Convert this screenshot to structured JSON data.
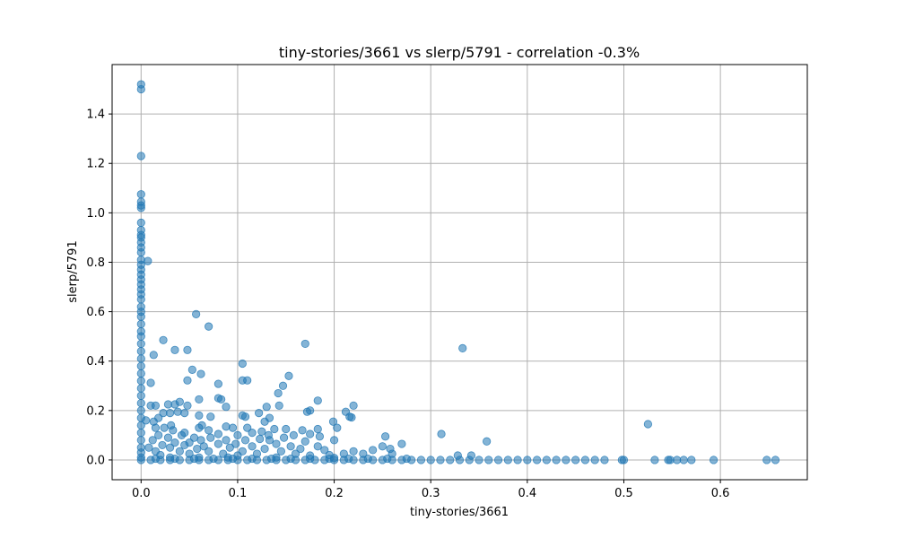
{
  "chart_data": {
    "type": "scatter",
    "title": "tiny-stories/3661 vs slerp/5791 - correlation -0.3%",
    "xlabel": "tiny-stories/3661",
    "ylabel": "slerp/5791",
    "xlim": [
      -0.03,
      0.69
    ],
    "ylim": [
      -0.08,
      1.6
    ],
    "xticks": [
      0.0,
      0.1,
      0.2,
      0.3,
      0.4,
      0.5,
      0.6
    ],
    "xtick_labels": [
      "0.0",
      "0.1",
      "0.2",
      "0.3",
      "0.4",
      "0.5",
      "0.6"
    ],
    "yticks": [
      0.0,
      0.2,
      0.4,
      0.6,
      0.8,
      1.0,
      1.2,
      1.4
    ],
    "ytick_labels": [
      "0.0",
      "0.2",
      "0.4",
      "0.6",
      "0.8",
      "1.0",
      "1.2",
      "1.4"
    ],
    "grid": true,
    "marker_color": "#1f77b4",
    "series": [
      {
        "points": [
          [
            0.0,
            1.52
          ],
          [
            0.0,
            1.5
          ],
          [
            0.0,
            1.23
          ],
          [
            0.0,
            1.075
          ],
          [
            0.0,
            1.045
          ],
          [
            0.0,
            1.03
          ],
          [
            0.0,
            1.02
          ],
          [
            0.0,
            0.96
          ],
          [
            0.0,
            0.93
          ],
          [
            0.0,
            0.91
          ],
          [
            0.0,
            0.9
          ],
          [
            0.0,
            0.88
          ],
          [
            0.0,
            0.86
          ],
          [
            0.0,
            0.84
          ],
          [
            0.0,
            0.81
          ],
          [
            0.0,
            0.79
          ],
          [
            0.0,
            0.77
          ],
          [
            0.0,
            0.75
          ],
          [
            0.0,
            0.73
          ],
          [
            0.0,
            0.71
          ],
          [
            0.0,
            0.69
          ],
          [
            0.0,
            0.67
          ],
          [
            0.0,
            0.65
          ],
          [
            0.0,
            0.62
          ],
          [
            0.0,
            0.6
          ],
          [
            0.0,
            0.58
          ],
          [
            0.0,
            0.55
          ],
          [
            0.0,
            0.52
          ],
          [
            0.0,
            0.5
          ],
          [
            0.0,
            0.47
          ],
          [
            0.0,
            0.44
          ],
          [
            0.0,
            0.41
          ],
          [
            0.0,
            0.38
          ],
          [
            0.0,
            0.35
          ],
          [
            0.0,
            0.32
          ],
          [
            0.0,
            0.29
          ],
          [
            0.0,
            0.26
          ],
          [
            0.0,
            0.23
          ],
          [
            0.0,
            0.2
          ],
          [
            0.0,
            0.17
          ],
          [
            0.0,
            0.14
          ],
          [
            0.0,
            0.11
          ],
          [
            0.0,
            0.08
          ],
          [
            0.0,
            0.05
          ],
          [
            0.0,
            0.03
          ],
          [
            0.0,
            0.01
          ],
          [
            0.0,
            0.0
          ],
          [
            0.007,
            0.805
          ],
          [
            0.057,
            0.59
          ],
          [
            0.07,
            0.54
          ],
          [
            0.023,
            0.485
          ],
          [
            0.17,
            0.47
          ],
          [
            0.333,
            0.452
          ],
          [
            0.035,
            0.445
          ],
          [
            0.048,
            0.445
          ],
          [
            0.013,
            0.425
          ],
          [
            0.105,
            0.39
          ],
          [
            0.053,
            0.365
          ],
          [
            0.062,
            0.348
          ],
          [
            0.153,
            0.34
          ],
          [
            0.105,
            0.322
          ],
          [
            0.11,
            0.322
          ],
          [
            0.048,
            0.322
          ],
          [
            0.01,
            0.312
          ],
          [
            0.08,
            0.308
          ],
          [
            0.147,
            0.3
          ],
          [
            0.142,
            0.27
          ],
          [
            0.06,
            0.245
          ],
          [
            0.08,
            0.25
          ],
          [
            0.083,
            0.245
          ],
          [
            0.183,
            0.24
          ],
          [
            0.04,
            0.235
          ],
          [
            0.028,
            0.225
          ],
          [
            0.035,
            0.225
          ],
          [
            0.048,
            0.22
          ],
          [
            0.143,
            0.22
          ],
          [
            0.22,
            0.22
          ],
          [
            0.01,
            0.22
          ],
          [
            0.015,
            0.22
          ],
          [
            0.13,
            0.215
          ],
          [
            0.088,
            0.215
          ],
          [
            0.175,
            0.2
          ],
          [
            0.172,
            0.195
          ],
          [
            0.212,
            0.195
          ],
          [
            0.023,
            0.19
          ],
          [
            0.03,
            0.19
          ],
          [
            0.038,
            0.195
          ],
          [
            0.045,
            0.19
          ],
          [
            0.122,
            0.19
          ],
          [
            0.06,
            0.18
          ],
          [
            0.072,
            0.175
          ],
          [
            0.105,
            0.18
          ],
          [
            0.108,
            0.175
          ],
          [
            0.216,
            0.175
          ],
          [
            0.218,
            0.172
          ],
          [
            0.018,
            0.17
          ],
          [
            0.133,
            0.17
          ],
          [
            0.005,
            0.16
          ],
          [
            0.013,
            0.155
          ],
          [
            0.199,
            0.155
          ],
          [
            0.128,
            0.155
          ],
          [
            0.031,
            0.14
          ],
          [
            0.063,
            0.14
          ],
          [
            0.088,
            0.135
          ],
          [
            0.015,
            0.13
          ],
          [
            0.024,
            0.13
          ],
          [
            0.06,
            0.13
          ],
          [
            0.095,
            0.13
          ],
          [
            0.11,
            0.13
          ],
          [
            0.138,
            0.125
          ],
          [
            0.15,
            0.125
          ],
          [
            0.167,
            0.12
          ],
          [
            0.183,
            0.125
          ],
          [
            0.203,
            0.13
          ],
          [
            0.033,
            0.12
          ],
          [
            0.07,
            0.12
          ],
          [
            0.115,
            0.11
          ],
          [
            0.125,
            0.115
          ],
          [
            0.045,
            0.11
          ],
          [
            0.08,
            0.105
          ],
          [
            0.175,
            0.105
          ],
          [
            0.311,
            0.105
          ],
          [
            0.018,
            0.1
          ],
          [
            0.042,
            0.1
          ],
          [
            0.1,
            0.1
          ],
          [
            0.132,
            0.1
          ],
          [
            0.158,
            0.1
          ],
          [
            0.253,
            0.095
          ],
          [
            0.185,
            0.095
          ],
          [
            0.028,
            0.09
          ],
          [
            0.055,
            0.09
          ],
          [
            0.072,
            0.09
          ],
          [
            0.148,
            0.09
          ],
          [
            0.123,
            0.085
          ],
          [
            0.012,
            0.08
          ],
          [
            0.062,
            0.08
          ],
          [
            0.088,
            0.08
          ],
          [
            0.108,
            0.08
          ],
          [
            0.133,
            0.08
          ],
          [
            0.17,
            0.075
          ],
          [
            0.2,
            0.08
          ],
          [
            0.358,
            0.075
          ],
          [
            0.035,
            0.07
          ],
          [
            0.05,
            0.07
          ],
          [
            0.08,
            0.065
          ],
          [
            0.098,
            0.065
          ],
          [
            0.14,
            0.065
          ],
          [
            0.27,
            0.065
          ],
          [
            0.022,
            0.06
          ],
          [
            0.045,
            0.06
          ],
          [
            0.065,
            0.055
          ],
          [
            0.115,
            0.055
          ],
          [
            0.155,
            0.055
          ],
          [
            0.183,
            0.055
          ],
          [
            0.25,
            0.055
          ],
          [
            0.008,
            0.05
          ],
          [
            0.03,
            0.05
          ],
          [
            0.058,
            0.045
          ],
          [
            0.092,
            0.05
          ],
          [
            0.128,
            0.045
          ],
          [
            0.165,
            0.045
          ],
          [
            0.19,
            0.04
          ],
          [
            0.24,
            0.04
          ],
          [
            0.258,
            0.045
          ],
          [
            0.015,
            0.035
          ],
          [
            0.04,
            0.035
          ],
          [
            0.07,
            0.035
          ],
          [
            0.105,
            0.035
          ],
          [
            0.145,
            0.035
          ],
          [
            0.22,
            0.035
          ],
          [
            0.05,
            0.025
          ],
          [
            0.085,
            0.025
          ],
          [
            0.12,
            0.025
          ],
          [
            0.16,
            0.025
          ],
          [
            0.21,
            0.025
          ],
          [
            0.23,
            0.025
          ],
          [
            0.26,
            0.025
          ],
          [
            0.02,
            0.02
          ],
          [
            0.1,
            0.018
          ],
          [
            0.175,
            0.018
          ],
          [
            0.195,
            0.02
          ],
          [
            0.328,
            0.018
          ],
          [
            0.342,
            0.018
          ],
          [
            0.03,
            0.01
          ],
          [
            0.06,
            0.01
          ],
          [
            0.09,
            0.01
          ],
          [
            0.14,
            0.01
          ],
          [
            0.2,
            0.008
          ],
          [
            0.525,
            0.145
          ],
          [
            0.01,
            0.0
          ],
          [
            0.02,
            0.0
          ],
          [
            0.03,
            0.0
          ],
          [
            0.04,
            0.0
          ],
          [
            0.05,
            0.0
          ],
          [
            0.06,
            0.0
          ],
          [
            0.07,
            0.0
          ],
          [
            0.08,
            0.0
          ],
          [
            0.09,
            0.0
          ],
          [
            0.1,
            0.0
          ],
          [
            0.11,
            0.0
          ],
          [
            0.12,
            0.0
          ],
          [
            0.13,
            0.0
          ],
          [
            0.14,
            0.0
          ],
          [
            0.15,
            0.0
          ],
          [
            0.16,
            0.0
          ],
          [
            0.17,
            0.0
          ],
          [
            0.18,
            0.0
          ],
          [
            0.19,
            0.0
          ],
          [
            0.2,
            0.0
          ],
          [
            0.21,
            0.0
          ],
          [
            0.22,
            0.0
          ],
          [
            0.23,
            0.0
          ],
          [
            0.24,
            0.0
          ],
          [
            0.25,
            0.0
          ],
          [
            0.26,
            0.0
          ],
          [
            0.27,
            0.0
          ],
          [
            0.28,
            0.0
          ],
          [
            0.29,
            0.0
          ],
          [
            0.3,
            0.0
          ],
          [
            0.31,
            0.0
          ],
          [
            0.32,
            0.0
          ],
          [
            0.33,
            0.0
          ],
          [
            0.34,
            0.0
          ],
          [
            0.35,
            0.0
          ],
          [
            0.36,
            0.0
          ],
          [
            0.37,
            0.0
          ],
          [
            0.38,
            0.0
          ],
          [
            0.39,
            0.0
          ],
          [
            0.4,
            0.0
          ],
          [
            0.41,
            0.0
          ],
          [
            0.42,
            0.0
          ],
          [
            0.43,
            0.0
          ],
          [
            0.44,
            0.0
          ],
          [
            0.45,
            0.0
          ],
          [
            0.46,
            0.0
          ],
          [
            0.47,
            0.0
          ],
          [
            0.48,
            0.0
          ],
          [
            0.498,
            0.0
          ],
          [
            0.5,
            0.0
          ],
          [
            0.532,
            0.0
          ],
          [
            0.546,
            0.0
          ],
          [
            0.548,
            0.0
          ],
          [
            0.555,
            0.0
          ],
          [
            0.562,
            0.0
          ],
          [
            0.57,
            0.0
          ],
          [
            0.593,
            0.0
          ],
          [
            0.648,
            0.0
          ],
          [
            0.657,
            0.0
          ],
          [
            0.015,
            0.005
          ],
          [
            0.035,
            0.005
          ],
          [
            0.055,
            0.005
          ],
          [
            0.075,
            0.005
          ],
          [
            0.095,
            0.005
          ],
          [
            0.115,
            0.005
          ],
          [
            0.135,
            0.005
          ],
          [
            0.155,
            0.005
          ],
          [
            0.175,
            0.005
          ],
          [
            0.195,
            0.005
          ],
          [
            0.215,
            0.005
          ],
          [
            0.235,
            0.005
          ],
          [
            0.255,
            0.005
          ],
          [
            0.275,
            0.005
          ]
        ]
      }
    ]
  }
}
